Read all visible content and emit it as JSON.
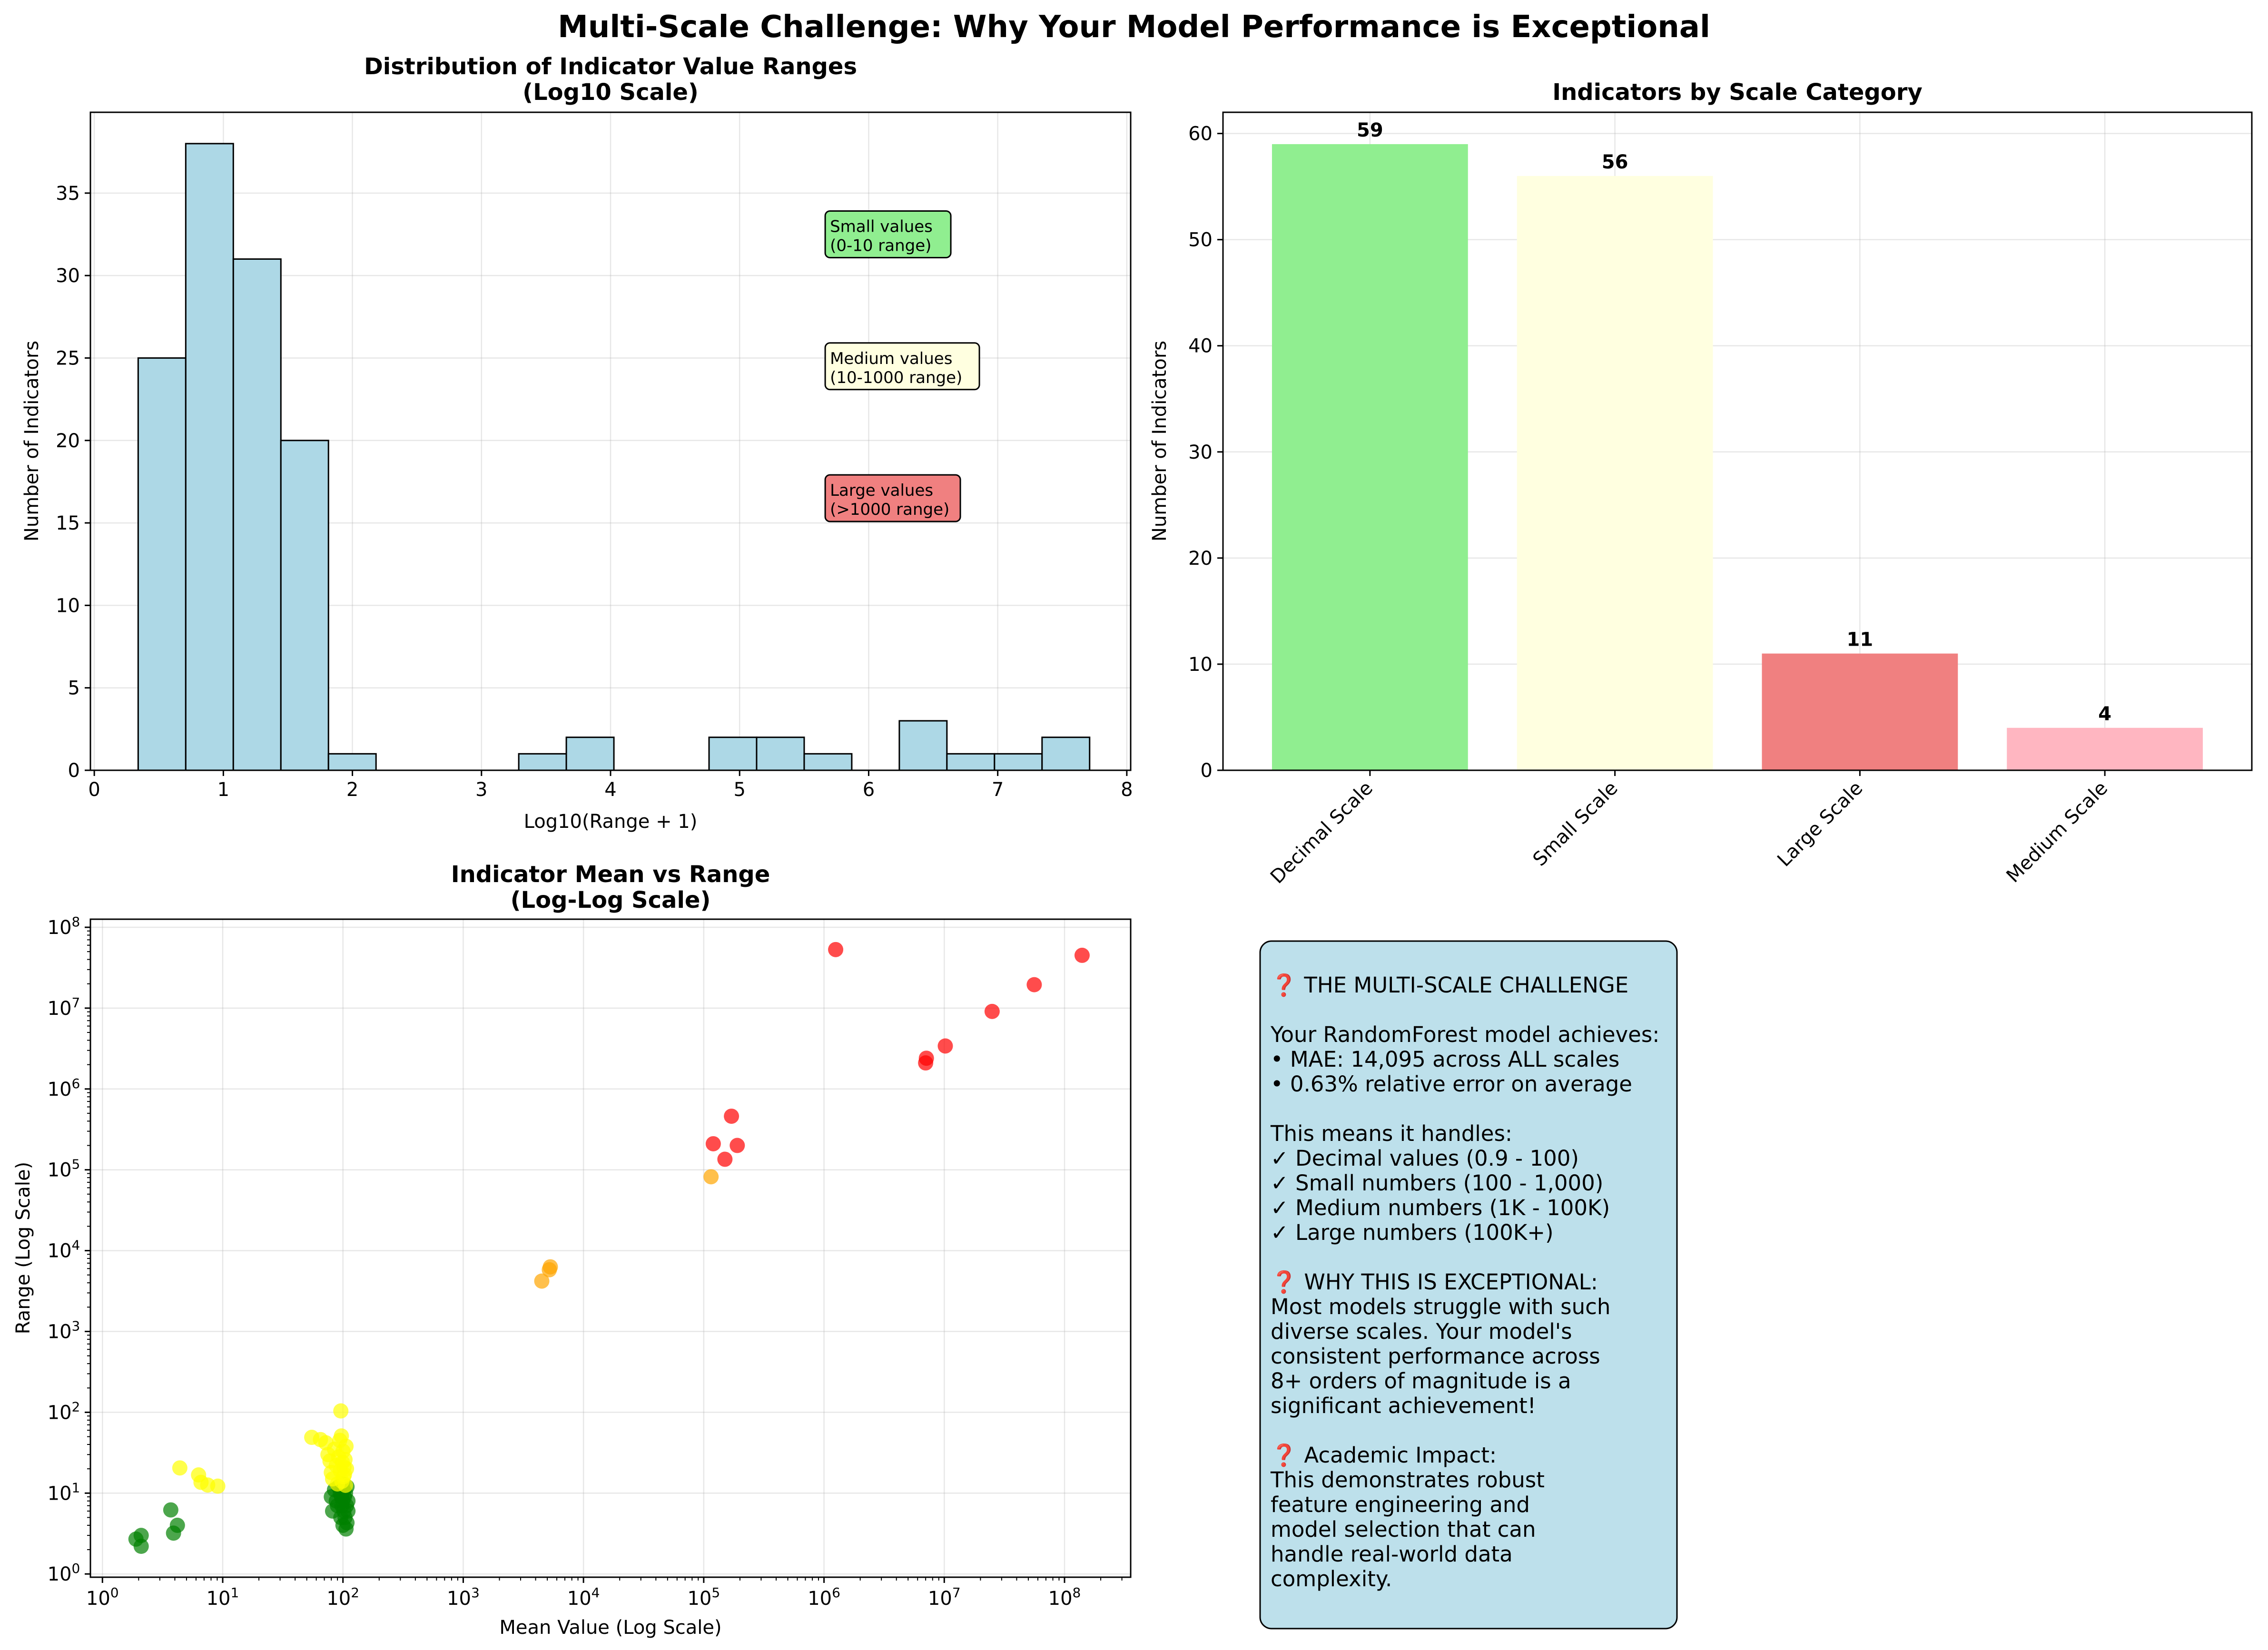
{
  "figure_title": "Multi-Scale Challenge: Why Your Model Performance is Exceptional",
  "colors": {
    "hist": "#add8e6",
    "decimal": "#90ee90",
    "small": "#ffffe0",
    "large": "#f08080",
    "medium": "#ffb6c1",
    "scatter_decimal": "#008000",
    "scatter_small": "#ffff00",
    "scatter_medium": "#ffa500",
    "scatter_large": "#ff0000",
    "info_box": "#add8e6"
  },
  "chart_data": [
    {
      "id": "hist",
      "type": "bar",
      "title": "Distribution of Indicator Value Ranges",
      "subtitle": "(Log10 Scale)",
      "xlabel": "Log10(Range + 1)",
      "ylabel": "Number of Indicators",
      "xlim": [
        -0.03,
        8.03
      ],
      "ylim": [
        0,
        39.9
      ],
      "xticks": [
        "0",
        "1",
        "2",
        "3",
        "4",
        "5",
        "6",
        "7",
        "8"
      ],
      "yticks": [
        "0",
        "5",
        "10",
        "15",
        "20",
        "25",
        "30",
        "35"
      ],
      "bin_start": 0.34,
      "bin_width": 0.3686,
      "counts": [
        25,
        38,
        31,
        20,
        1,
        0,
        0,
        0,
        1,
        2,
        0,
        0,
        2,
        2,
        1,
        0,
        3,
        1,
        1,
        2
      ],
      "annotations": [
        {
          "lines": [
            "Small values",
            "(0-10 range)"
          ],
          "color": "#90ee90",
          "x": 5.7,
          "y": 32.5
        },
        {
          "lines": [
            "Medium values",
            "(10-1000 range)"
          ],
          "color": "#ffffe0",
          "x": 5.7,
          "y": 24.5
        },
        {
          "lines": [
            "Large values",
            "(>1000 range)"
          ],
          "color": "#f08080",
          "x": 5.7,
          "y": 16.5
        }
      ]
    },
    {
      "id": "bars",
      "type": "bar",
      "title": "Indicators by Scale Category",
      "xlabel": "",
      "ylabel": "Number of Indicators",
      "ylim": [
        0,
        62
      ],
      "yticks": [
        "0",
        "10",
        "20",
        "30",
        "40",
        "50",
        "60"
      ],
      "categories": [
        "Decimal Scale",
        "Small Scale",
        "Large Scale",
        "Medium Scale"
      ],
      "values": [
        59,
        56,
        11,
        4
      ],
      "value_labels": [
        "59",
        "56",
        "11",
        "4"
      ]
    },
    {
      "id": "scatter",
      "type": "scatter",
      "title": "Indicator Mean vs Range",
      "subtitle": "(Log-Log Scale)",
      "xlabel": "Mean Value (Log Scale)",
      "ylabel": "Range (Log Scale)",
      "xlim_log10": [
        -0.1,
        8.55
      ],
      "ylim_log10": [
        -0.04,
        8.1
      ],
      "xticks": [
        {
          "b": "10",
          "e": "0"
        },
        {
          "b": "10",
          "e": "1"
        },
        {
          "b": "10",
          "e": "2"
        },
        {
          "b": "10",
          "e": "3"
        },
        {
          "b": "10",
          "e": "4"
        },
        {
          "b": "10",
          "e": "5"
        },
        {
          "b": "10",
          "e": "6"
        },
        {
          "b": "10",
          "e": "7"
        },
        {
          "b": "10",
          "e": "8"
        }
      ],
      "yticks": [
        {
          "b": "10",
          "e": "0"
        },
        {
          "b": "10",
          "e": "1"
        },
        {
          "b": "10",
          "e": "2"
        },
        {
          "b": "10",
          "e": "3"
        },
        {
          "b": "10",
          "e": "4"
        },
        {
          "b": "10",
          "e": "5"
        },
        {
          "b": "10",
          "e": "6"
        },
        {
          "b": "10",
          "e": "7"
        },
        {
          "b": "10",
          "e": "8"
        }
      ],
      "series": [
        {
          "name": "Decimal Scale",
          "color": "#008000",
          "points": [
            [
              1.9,
              2.7
            ],
            [
              2.1,
              3.0
            ],
            [
              2.1,
              2.2
            ],
            [
              3.7,
              6.2
            ],
            [
              3.9,
              3.2
            ],
            [
              4.2,
              4.0
            ],
            [
              80,
              9
            ],
            [
              82,
              6
            ],
            [
              85,
              11
            ],
            [
              88,
              8
            ],
            [
              90,
              7
            ],
            [
              92,
              12
            ],
            [
              95,
              10
            ],
            [
              96,
              5
            ],
            [
              97,
              9
            ],
            [
              98,
              7
            ],
            [
              99,
              13
            ],
            [
              100,
              4
            ],
            [
              100,
              8
            ],
            [
              101,
              11
            ],
            [
              102,
              6
            ],
            [
              103,
              9
            ],
            [
              104,
              5
            ],
            [
              105,
              10
            ],
            [
              106,
              3.6
            ],
            [
              107,
              7
            ],
            [
              108,
              12
            ],
            [
              108,
              4.3
            ],
            [
              110,
              8
            ],
            [
              110,
              6
            ]
          ]
        },
        {
          "name": "Small Scale",
          "color": "#ffff00",
          "points": [
            [
              4.4,
              20.5
            ],
            [
              6.3,
              16.8
            ],
            [
              6.6,
              13.6
            ],
            [
              7.5,
              12.6
            ],
            [
              9.1,
              12.2
            ],
            [
              55,
              49
            ],
            [
              65,
              46
            ],
            [
              72,
              42
            ],
            [
              75,
              30
            ],
            [
              78,
              25
            ],
            [
              80,
              18
            ],
            [
              82,
              15
            ],
            [
              85,
              35
            ],
            [
              88,
              22
            ],
            [
              90,
              13
            ],
            [
              92,
              28
            ],
            [
              94,
              45
            ],
            [
              95,
              19
            ],
            [
              96,
              104
            ],
            [
              97,
              51
            ],
            [
              98,
              14
            ],
            [
              99,
              24
            ],
            [
              100,
              33
            ],
            [
              101,
              16
            ],
            [
              102,
              21
            ],
            [
              103,
              17
            ],
            [
              104,
              26
            ],
            [
              105,
              12.5
            ],
            [
              106,
              38
            ],
            [
              107,
              20
            ]
          ]
        },
        {
          "name": "Medium Scale",
          "color": "#ffa500",
          "points": [
            [
              4500,
              4200
            ],
            [
              5200,
              5800
            ],
            [
              5300,
              6300
            ],
            [
              115000,
              82000
            ]
          ]
        },
        {
          "name": "Large Scale",
          "color": "#ff0000",
          "points": [
            [
              120000,
              210000
            ],
            [
              150000,
              135000
            ],
            [
              170000,
              460000
            ],
            [
              190000,
              200000
            ],
            [
              1250000,
              53000000
            ],
            [
              7000000,
              2100000
            ],
            [
              7100000,
              2400000
            ],
            [
              10200000,
              3400000
            ],
            [
              25000000,
              9100000
            ],
            [
              56000000,
              19500000
            ],
            [
              140000000,
              45000000
            ]
          ]
        }
      ]
    }
  ],
  "info": {
    "lines": [
      "❓ THE MULTI-SCALE CHALLENGE",
      "",
      "Your RandomForest model achieves:",
      "• MAE: 14,095 across ALL scales",
      "• 0.63% relative error on average",
      "",
      "This means it handles:",
      "✓ Decimal values (0.9 - 100)",
      "✓ Small numbers (100 - 1,000)",
      "✓ Medium numbers (1K - 100K)",
      "✓ Large numbers (100K+)",
      "",
      "❓ WHY THIS IS EXCEPTIONAL:",
      "Most models struggle with such",
      "diverse scales. Your model's",
      "consistent performance across",
      "8+ orders of magnitude is a",
      "significant achievement!",
      "",
      "❓ Academic Impact:",
      "This demonstrates robust",
      "feature engineering and",
      "model selection that can",
      "handle real-world data",
      "complexity."
    ]
  }
}
